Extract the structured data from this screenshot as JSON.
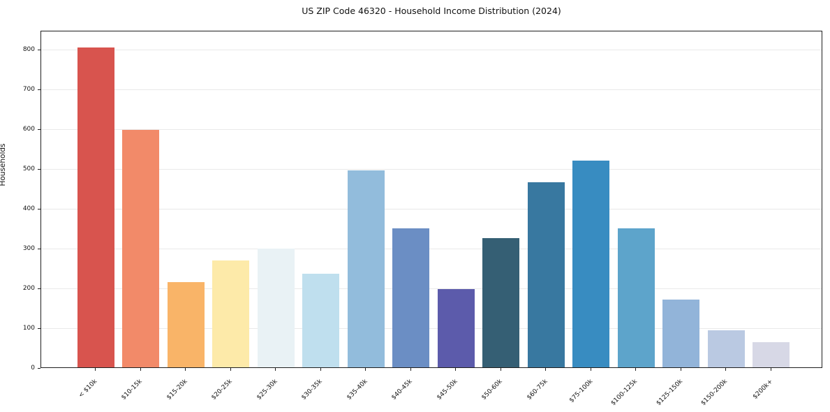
{
  "chart_data": {
    "type": "bar",
    "title": "US ZIP Code 46320 - Household Income Distribution (2024)",
    "xlabel": "",
    "ylabel": "Households",
    "categories": [
      "< $10k",
      "$10-15k",
      "$15-20k",
      "$20-25k",
      "$25-30k",
      "$30-35k",
      "$35-40k",
      "$40-45k",
      "$45-50k",
      "$50-60k",
      "$60-75k",
      "$75-100k",
      "$100-125k",
      "$125-150k",
      "$150-200k",
      "$200k+"
    ],
    "values": [
      808,
      600,
      215,
      270,
      300,
      237,
      498,
      350,
      198,
      326,
      467,
      522,
      350,
      171,
      93,
      63
    ],
    "bar_colors": [
      "#d8544e",
      "#f28a69",
      "#f9b468",
      "#fdeaa9",
      "#e9f2f5",
      "#bfdfee",
      "#92bcdc",
      "#6b8ec4",
      "#5c5bab",
      "#355f74",
      "#3878a0",
      "#388cc1",
      "#5da4cb",
      "#92b4d9",
      "#bac9e2",
      "#d7d8e6"
    ],
    "ylim": [
      0,
      848
    ],
    "yticks": [
      0,
      100,
      200,
      300,
      400,
      500,
      600,
      700,
      800
    ],
    "grid": "horizontal",
    "gridline_color": "#e9e9e9",
    "background": "#ffffff",
    "legend": "none"
  }
}
